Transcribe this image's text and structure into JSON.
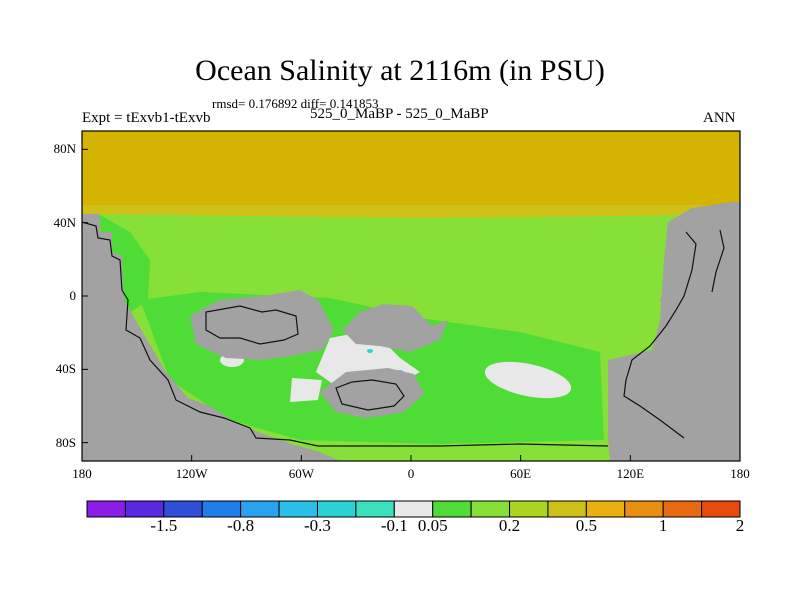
{
  "plot": {
    "title": "Ocean Salinity at 2116m (in PSU)",
    "stats": "rmsd= 0.176892 diff= 0.141853",
    "experiment": "Expt = tExvb1-tExvb",
    "center_label": "525_0_MaBP - 525_0_MaBP",
    "season": "ANN"
  },
  "axes": {
    "y_ticks": [
      {
        "label": "80N",
        "value": 80
      },
      {
        "label": "40N",
        "value": 40
      },
      {
        "label": "0",
        "value": 0
      },
      {
        "label": "40S",
        "value": -40
      },
      {
        "label": "80S",
        "value": -80
      }
    ],
    "x_ticks": [
      {
        "label": "180",
        "value": -180
      },
      {
        "label": "120W",
        "value": -120
      },
      {
        "label": "60W",
        "value": -60
      },
      {
        "label": "0",
        "value": 0
      },
      {
        "label": "60E",
        "value": 60
      },
      {
        "label": "120E",
        "value": 120
      },
      {
        "label": "180",
        "value": 180
      }
    ]
  },
  "colorbar": {
    "colors": [
      "#8a1ee6",
      "#5a28e0",
      "#2f4fd9",
      "#1f7ee8",
      "#2aa2ef",
      "#2ac0e8",
      "#2ad2d6",
      "#3de0bc",
      "#e8e8e8",
      "#50dc36",
      "#86e038",
      "#aad420",
      "#cfc017",
      "#e8b010",
      "#e88e10",
      "#e86a10",
      "#e84a0e"
    ],
    "labels": [
      {
        "text": "-1.5",
        "boundary": 2
      },
      {
        "text": "-0.8",
        "boundary": 4
      },
      {
        "text": "-0.3",
        "boundary": 6
      },
      {
        "text": "-0.1",
        "boundary": 8
      },
      {
        "text": "0.05",
        "boundary": 9
      },
      {
        "text": "0.2",
        "boundary": 11
      },
      {
        "text": "0.5",
        "boundary": 13
      },
      {
        "text": "1",
        "boundary": 15
      },
      {
        "text": "2",
        "boundary": 17
      }
    ]
  },
  "colors": {
    "land": "#a2a2a2",
    "high_lat_band": "#d4b400",
    "low_anomaly": "#86e038",
    "mid_anomaly": "#50dc36",
    "near_zero": "#e8e8e8",
    "negative": "#2ad2d6"
  }
}
